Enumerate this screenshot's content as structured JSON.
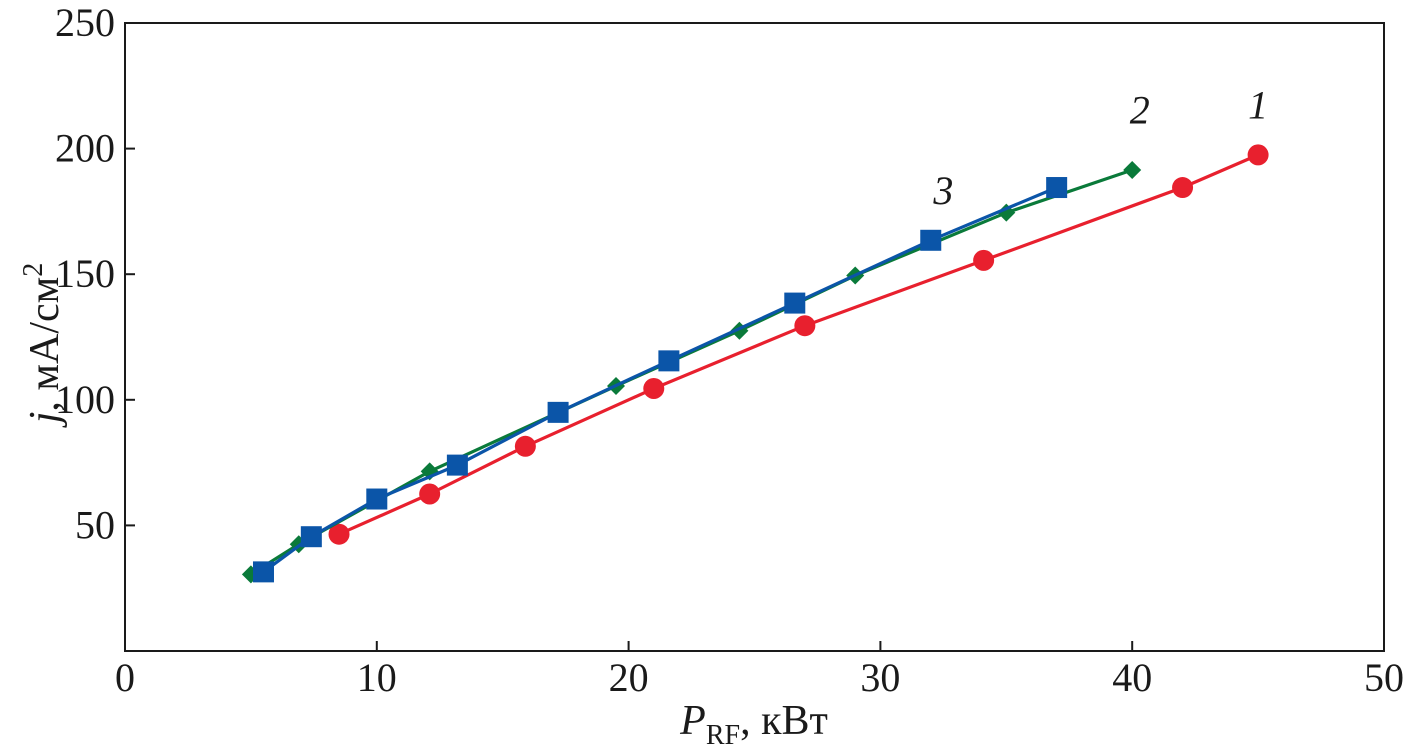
{
  "chart_data": {
    "type": "line",
    "title": "",
    "xlabel": {
      "symbol": "P",
      "subscript": "RF",
      "unit": ", кВт"
    },
    "ylabel": {
      "symbol": "j",
      "unit": ", мА/см",
      "superscript": "2"
    },
    "xlim": [
      0,
      50
    ],
    "ylim": [
      0,
      250
    ],
    "x_ticks": [
      0,
      10,
      20,
      30,
      40,
      50
    ],
    "y_ticks": [
      50,
      100,
      150,
      200,
      250
    ],
    "x_tick_labels": [
      "0",
      "10",
      "20",
      "30",
      "40",
      "50"
    ],
    "y_tick_labels": [
      "50",
      "100",
      "150",
      "200",
      "250"
    ],
    "grid": false,
    "series": [
      {
        "name": "1",
        "color": "#e8202e",
        "marker": "circle",
        "label_position": [
          45,
          212
        ],
        "points": [
          [
            8.5,
            46.5
          ],
          [
            12.1,
            62.5
          ],
          [
            15.9,
            81.5
          ],
          [
            21.0,
            104.5
          ],
          [
            27.0,
            129.5
          ],
          [
            34.1,
            155.5
          ],
          [
            42.0,
            184.5
          ],
          [
            45.0,
            197.5
          ]
        ]
      },
      {
        "name": "2",
        "color": "#0a7a3a",
        "marker": "diamond",
        "label_position": [
          40.3,
          210
        ],
        "points": [
          [
            5.0,
            30.5
          ],
          [
            6.9,
            42.5
          ],
          [
            12.1,
            71.5
          ],
          [
            19.5,
            105.5
          ],
          [
            24.4,
            127.5
          ],
          [
            29.0,
            149.5
          ],
          [
            35.0,
            174.5
          ],
          [
            40.0,
            191.5
          ]
        ]
      },
      {
        "name": "3",
        "color": "#0b55a8",
        "marker": "square",
        "label_position": [
          32.5,
          178
        ],
        "points": [
          [
            5.5,
            31.5
          ],
          [
            7.4,
            45.5
          ],
          [
            10.0,
            60.5
          ],
          [
            13.2,
            74.0
          ],
          [
            17.2,
            95.0
          ],
          [
            21.6,
            115.5
          ],
          [
            26.6,
            138.5
          ],
          [
            32.0,
            163.5
          ],
          [
            37.0,
            184.5
          ]
        ]
      }
    ]
  }
}
